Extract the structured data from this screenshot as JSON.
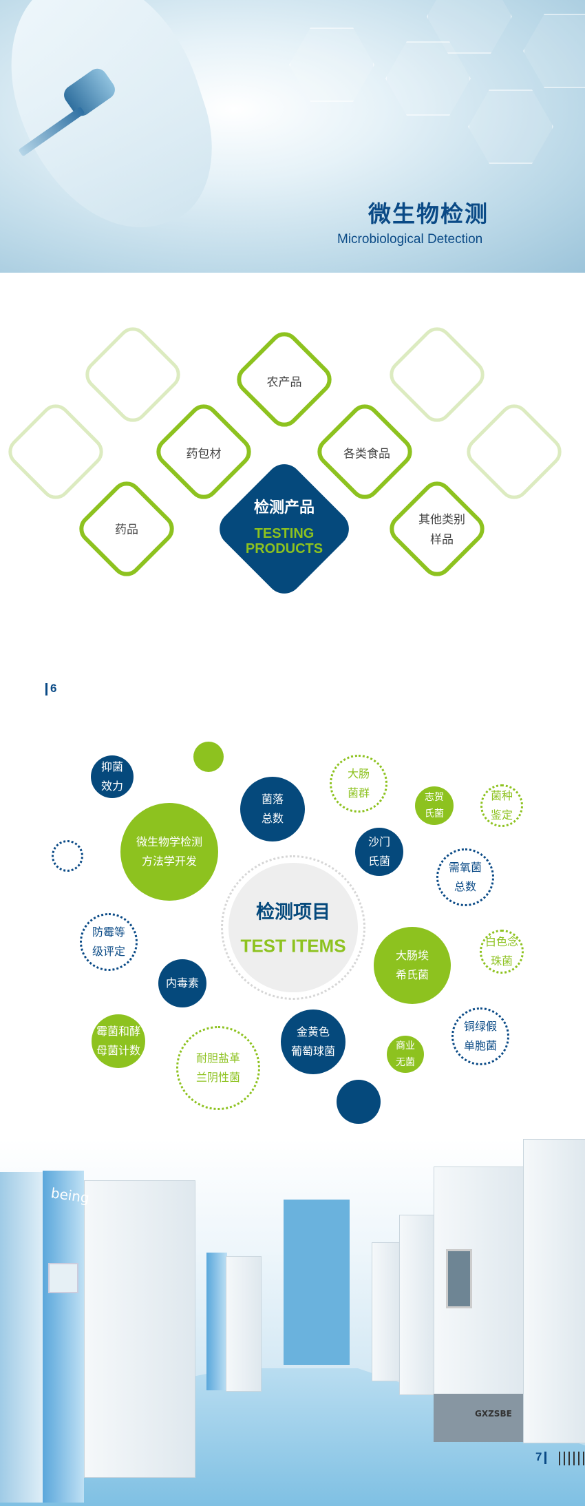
{
  "header": {
    "title": "微生物检测",
    "subtitle": "Microbiological Detection"
  },
  "products": {
    "center_cn": "检测产品",
    "center_en": "TESTING\nPRODUCTS",
    "items": [
      "农产品",
      "药包材",
      "各类食品",
      "药品",
      "其他类别\n样品"
    ]
  },
  "page_left": "6",
  "items_section": {
    "center_cn": "检测项目",
    "center_en": "TEST ITEMS",
    "bubbles": [
      "抑菌\n效力",
      "菌落\n总数",
      "大肠\n菌群",
      "志贺\n氏菌",
      "菌种\n鉴定",
      "微生物学检测\n方法学开发",
      "沙门\n氏菌",
      "需氧菌\n总数",
      "防霉等\n级评定",
      "大肠埃\n希氏菌",
      "白色念\n珠菌",
      "内毒素",
      "霉菌和酵\n母菌计数",
      "耐胆盐革\n兰阴性菌",
      "金黄色\n葡萄球菌",
      "商业\n无菌",
      "铜绿假\n单胞菌"
    ]
  },
  "photo_text": {
    "brand": "being",
    "brand2": "GXZSBE"
  },
  "page_right": "7",
  "colors": {
    "blue": "#05497c",
    "green": "#8dc21f",
    "light_green": "#dcebc0"
  }
}
